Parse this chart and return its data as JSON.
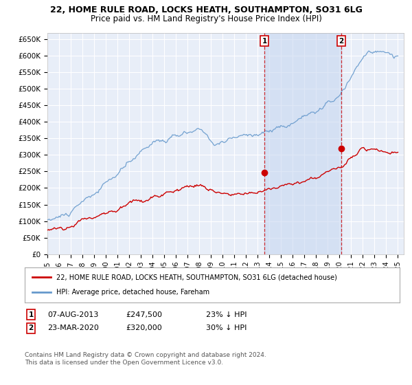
{
  "title": "22, HOME RULE ROAD, LOCKS HEATH, SOUTHAMPTON, SO31 6LG",
  "subtitle": "Price paid vs. HM Land Registry's House Price Index (HPI)",
  "ylim": [
    0,
    670000
  ],
  "yticks": [
    0,
    50000,
    100000,
    150000,
    200000,
    250000,
    300000,
    350000,
    400000,
    450000,
    500000,
    550000,
    600000,
    650000
  ],
  "ytick_labels": [
    "£0",
    "£50K",
    "£100K",
    "£150K",
    "£200K",
    "£250K",
    "£300K",
    "£350K",
    "£400K",
    "£450K",
    "£500K",
    "£550K",
    "£600K",
    "£650K"
  ],
  "background_color": "#ffffff",
  "plot_bg_color": "#e8eef8",
  "grid_color": "#ffffff",
  "hpi_color": "#6699cc",
  "price_color": "#cc0000",
  "shade_color": "#c8d8f0",
  "transaction1_date": "07-AUG-2013",
  "transaction1_price": 247500,
  "transaction1_hpi_diff": "23% ↓ HPI",
  "transaction2_date": "23-MAR-2020",
  "transaction2_price": 320000,
  "transaction2_hpi_diff": "30% ↓ HPI",
  "legend_house": "22, HOME RULE ROAD, LOCKS HEATH, SOUTHAMPTON, SO31 6LG (detached house)",
  "legend_hpi": "HPI: Average price, detached house, Fareham",
  "footnote": "Contains HM Land Registry data © Crown copyright and database right 2024.\nThis data is licensed under the Open Government Licence v3.0.",
  "title_fontsize": 9,
  "subtitle_fontsize": 8.5
}
